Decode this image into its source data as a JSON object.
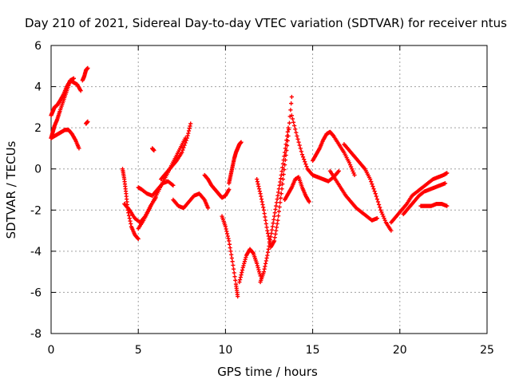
{
  "chart_data": {
    "type": "scatter",
    "title": "Day 210 of 2021, Sidereal Day-to-day VTEC variation (SDTVAR) for receiver ntus",
    "xlabel": "GPS time / hours",
    "ylabel": "SDTVAR / TECUs",
    "xlim": [
      0,
      25
    ],
    "ylim": [
      -8,
      6
    ],
    "xticks": [
      0,
      5,
      10,
      15,
      20,
      25
    ],
    "yticks": [
      -8,
      -6,
      -4,
      -2,
      0,
      2,
      4,
      6
    ],
    "xtick_labels": [
      "0",
      "5",
      "10",
      "15",
      "20",
      "25"
    ],
    "ytick_labels": [
      "-8",
      "-6",
      "-4",
      "-2",
      "0",
      "2",
      "4",
      "6"
    ],
    "grid": true,
    "marker": "+",
    "color": "#ff0000",
    "series": [
      {
        "name": "s1",
        "x": [
          0.0,
          0.1,
          0.2,
          0.35,
          0.5,
          0.7,
          0.9,
          1.1,
          1.3,
          1.5,
          1.7
        ],
        "y": [
          2.6,
          2.8,
          3.0,
          3.1,
          3.3,
          3.6,
          4.0,
          4.3,
          4.2,
          4.1,
          3.8
        ]
      },
      {
        "name": "s2",
        "x": [
          0.0,
          0.1,
          0.2,
          0.35,
          0.5,
          0.7,
          0.9,
          1.1,
          1.3
        ],
        "y": [
          1.5,
          1.8,
          2.1,
          2.4,
          2.8,
          3.3,
          3.8,
          4.3,
          4.4
        ]
      },
      {
        "name": "s3",
        "x": [
          0.0,
          0.2,
          0.4,
          0.6,
          0.8,
          1.0,
          1.2,
          1.4,
          1.6
        ],
        "y": [
          1.5,
          1.6,
          1.7,
          1.8,
          1.9,
          1.9,
          1.7,
          1.4,
          1.0
        ]
      },
      {
        "name": "s4",
        "x": [
          1.8,
          1.9,
          2.0,
          2.1
        ],
        "y": [
          4.3,
          4.5,
          4.8,
          4.9
        ]
      },
      {
        "name": "s5",
        "x": [
          2.0,
          2.1
        ],
        "y": [
          2.2,
          2.3
        ]
      },
      {
        "name": "s6",
        "x": [
          4.1,
          4.2,
          4.3,
          4.4,
          4.6,
          4.8,
          5.0
        ],
        "y": [
          0.0,
          -0.5,
          -1.2,
          -2.0,
          -2.8,
          -3.2,
          -3.4
        ]
      },
      {
        "name": "s7",
        "x": [
          4.2,
          4.5,
          4.8,
          5.1,
          5.4,
          5.7,
          6.0
        ],
        "y": [
          -1.7,
          -2.0,
          -2.4,
          -2.6,
          -2.3,
          -1.8,
          -1.4
        ]
      },
      {
        "name": "s8",
        "x": [
          5.0,
          5.3,
          5.6,
          5.9,
          6.2,
          6.5,
          6.8,
          7.1,
          7.4,
          7.7
        ],
        "y": [
          -2.9,
          -2.5,
          -2.0,
          -1.5,
          -1.0,
          -0.5,
          0.0,
          0.5,
          1.0,
          1.5
        ]
      },
      {
        "name": "s9",
        "x": [
          5.0,
          5.2,
          5.5,
          5.8,
          6.1,
          6.4,
          6.7,
          7.0
        ],
        "y": [
          -0.9,
          -1.0,
          -1.2,
          -1.3,
          -1.0,
          -0.7,
          -0.6,
          -0.8
        ]
      },
      {
        "name": "s10",
        "x": [
          5.8,
          5.9
        ],
        "y": [
          1.0,
          0.9
        ]
      },
      {
        "name": "s11",
        "x": [
          6.3,
          6.6,
          6.9,
          7.2,
          7.5,
          7.8,
          8.0
        ],
        "y": [
          -0.5,
          -0.2,
          0.1,
          0.4,
          0.8,
          1.5,
          2.2
        ]
      },
      {
        "name": "s12",
        "x": [
          7.0,
          7.3,
          7.6,
          7.9,
          8.2,
          8.5,
          8.8,
          9.0
        ],
        "y": [
          -1.5,
          -1.8,
          -1.9,
          -1.6,
          -1.3,
          -1.2,
          -1.5,
          -1.9
        ]
      },
      {
        "name": "s13",
        "x": [
          8.8,
          9.0,
          9.2,
          9.4,
          9.6,
          9.8,
          10.0,
          10.2
        ],
        "y": [
          -0.3,
          -0.5,
          -0.8,
          -1.0,
          -1.2,
          -1.4,
          -1.3,
          -1.0
        ]
      },
      {
        "name": "s14",
        "x": [
          10.2,
          10.3,
          10.4,
          10.5,
          10.6,
          10.7,
          10.8,
          10.9
        ],
        "y": [
          -0.7,
          -0.3,
          0.1,
          0.5,
          0.8,
          1.0,
          1.2,
          1.3
        ]
      },
      {
        "name": "s15",
        "x": [
          9.8,
          10.0,
          10.2,
          10.4,
          10.6,
          10.7
        ],
        "y": [
          -2.3,
          -2.8,
          -3.5,
          -4.5,
          -5.6,
          -6.2
        ]
      },
      {
        "name": "s16",
        "x": [
          10.8,
          11.0,
          11.2,
          11.4,
          11.6,
          11.8,
          12.0
        ],
        "y": [
          -5.5,
          -4.8,
          -4.2,
          -3.9,
          -4.1,
          -4.6,
          -5.2
        ]
      },
      {
        "name": "s17",
        "x": [
          11.8,
          12.0,
          12.2,
          12.4,
          12.6,
          12.8,
          13.0,
          13.2,
          13.4,
          13.6,
          13.8
        ],
        "y": [
          -0.5,
          -1.2,
          -2.0,
          -3.0,
          -3.8,
          -3.5,
          -2.5,
          -1.2,
          0.2,
          1.6,
          3.5
        ]
      },
      {
        "name": "s18",
        "x": [
          12.0,
          12.2,
          12.4,
          12.6,
          12.8,
          13.0,
          13.2,
          13.4,
          13.6
        ],
        "y": [
          -5.5,
          -5.0,
          -4.2,
          -3.3,
          -2.3,
          -1.3,
          -0.3,
          0.8,
          2.0
        ]
      },
      {
        "name": "s19",
        "x": [
          13.4,
          13.6,
          13.8,
          14.0,
          14.2,
          14.4,
          14.6,
          14.8
        ],
        "y": [
          -1.5,
          -1.2,
          -0.9,
          -0.5,
          -0.4,
          -0.9,
          -1.3,
          -1.6
        ]
      },
      {
        "name": "s20",
        "x": [
          13.8,
          14.1,
          14.4,
          14.7,
          15.0,
          15.3,
          15.6,
          15.9,
          16.2,
          16.5
        ],
        "y": [
          2.6,
          1.6,
          0.7,
          0.0,
          -0.3,
          -0.4,
          -0.5,
          -0.6,
          -0.4,
          -0.1
        ]
      },
      {
        "name": "s21",
        "x": [
          15.0,
          15.2,
          15.4,
          15.6,
          15.8,
          16.0,
          16.2,
          16.5,
          16.8,
          17.1,
          17.4
        ],
        "y": [
          0.4,
          0.7,
          1.0,
          1.4,
          1.7,
          1.8,
          1.6,
          1.2,
          0.8,
          0.3,
          -0.3
        ]
      },
      {
        "name": "s22",
        "x": [
          16.0,
          16.3,
          16.6,
          16.9,
          17.2,
          17.5,
          17.8,
          18.1,
          18.4,
          18.7
        ],
        "y": [
          -0.1,
          -0.5,
          -0.9,
          -1.3,
          -1.6,
          -1.9,
          -2.1,
          -2.3,
          -2.5,
          -2.4
        ]
      },
      {
        "name": "s23",
        "x": [
          16.8,
          17.1,
          17.4,
          17.7,
          18.0,
          18.3,
          18.6,
          18.9,
          19.2,
          19.5
        ],
        "y": [
          1.2,
          0.9,
          0.6,
          0.3,
          0.0,
          -0.5,
          -1.2,
          -2.0,
          -2.6,
          -3.0
        ]
      },
      {
        "name": "s24",
        "x": [
          19.5,
          19.8,
          20.1,
          20.4,
          20.7,
          21.0,
          21.3,
          21.6,
          21.9,
          22.2,
          22.5,
          22.7
        ],
        "y": [
          -2.6,
          -2.3,
          -2.0,
          -1.7,
          -1.3,
          -1.1,
          -0.9,
          -0.7,
          -0.5,
          -0.4,
          -0.3,
          -0.2
        ]
      },
      {
        "name": "s25",
        "x": [
          20.2,
          20.5,
          20.8,
          21.1,
          21.4,
          21.7,
          22.0,
          22.3,
          22.6
        ],
        "y": [
          -2.2,
          -1.9,
          -1.6,
          -1.3,
          -1.1,
          -1.0,
          -0.9,
          -0.8,
          -0.7
        ]
      },
      {
        "name": "s26",
        "x": [
          21.2,
          21.5,
          21.8,
          22.1,
          22.4,
          22.7
        ],
        "y": [
          -1.8,
          -1.8,
          -1.8,
          -1.7,
          -1.7,
          -1.8
        ]
      }
    ]
  }
}
